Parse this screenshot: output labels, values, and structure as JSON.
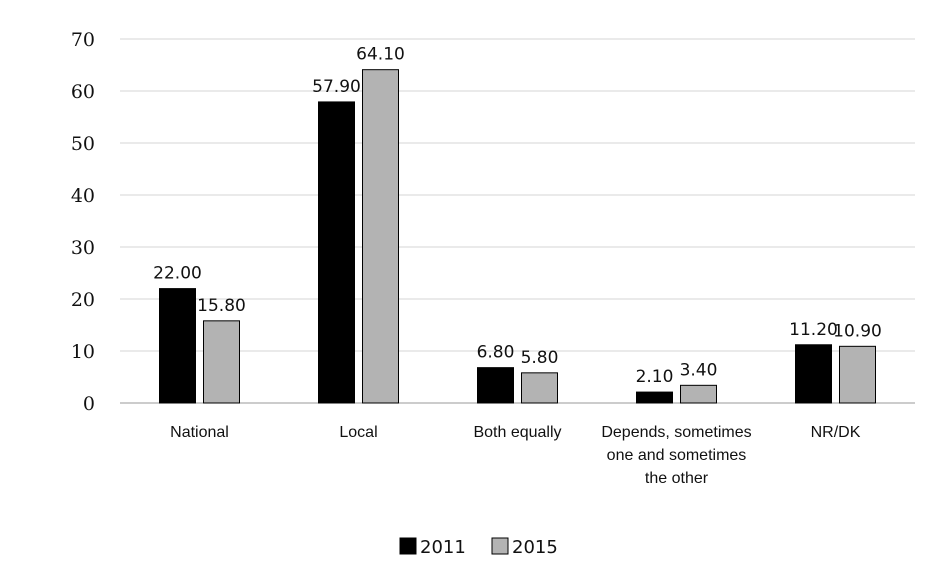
{
  "chart_data": {
    "type": "bar",
    "categories": [
      [
        "National"
      ],
      [
        "Local"
      ],
      [
        "Both equally"
      ],
      [
        "Depends, sometimes",
        "one and sometimes",
        "the other"
      ],
      [
        "NR/DK"
      ]
    ],
    "series": [
      {
        "name": "2011",
        "color": "#000000",
        "values": [
          22.0,
          57.9,
          6.8,
          2.1,
          11.2
        ],
        "labels": [
          "22.00",
          "57.90",
          "6.80",
          "2.10",
          "11.20"
        ]
      },
      {
        "name": "2015",
        "color": "#b3b3b3",
        "values": [
          15.8,
          64.1,
          5.8,
          3.4,
          10.9
        ],
        "labels": [
          "15.80",
          "64.10",
          "5.80",
          "3.40",
          "10.90"
        ]
      }
    ],
    "ylim": [
      0,
      70
    ],
    "yticks": [
      0,
      10,
      20,
      30,
      40,
      50,
      60,
      70
    ],
    "grid": true,
    "legend": "bottom",
    "title": "",
    "xlabel": "",
    "ylabel": ""
  }
}
